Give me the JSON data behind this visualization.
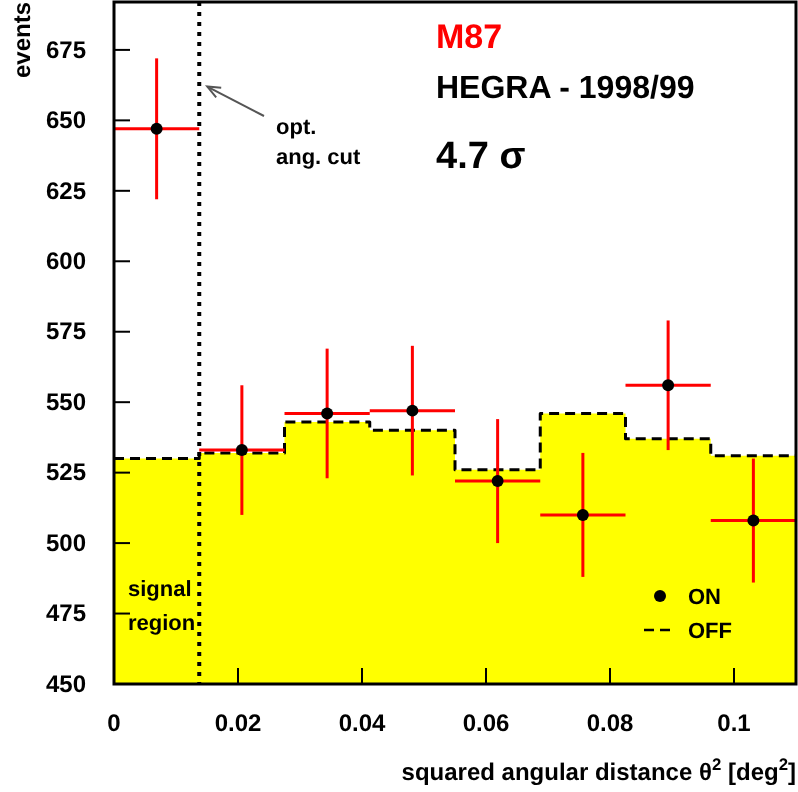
{
  "chart_data": {
    "type": "scatter",
    "title": "M87",
    "subtitle": "HEGRA - 1998/99",
    "xlabel": "squared angular distance θ$^{2}$  [deg$^{2}$]",
    "ylabel": "events",
    "annotations": [
      "4.7 σ",
      {
        "text": "opt.\nang. cut",
        "x": 0.01375,
        "y": 662
      },
      "signal\nregion"
    ],
    "x": [
      0.006875,
      0.020625,
      0.034375,
      0.048125,
      0.061875,
      0.075625,
      0.089375,
      0.103125
    ],
    "series": [
      {
        "type": "histogram",
        "color": "#ffff00",
        "bins": [
          0,
          0.01375,
          0.0275,
          0.04125,
          0.055,
          0.06875,
          0.0825,
          0.09625,
          0.11
        ],
        "values": [
          530,
          532,
          543,
          540,
          526,
          546,
          537,
          531
        ]
      },
      {
        "type": "histogram",
        "name": "OFF",
        "color": "#000000",
        "line_style": "dashed",
        "bins": [
          0,
          0.01375,
          0.0275,
          0.04125,
          0.055,
          0.06875,
          0.0825,
          0.09625,
          0.11
        ],
        "values": [
          530,
          532,
          543,
          540,
          526,
          546,
          537,
          531
        ]
      },
      {
        "name": "ON",
        "color": "#000000",
        "marker": "circle",
        "values": [
          647,
          533,
          546,
          547,
          522,
          510,
          556,
          508
        ],
        "errors": [
          25,
          23,
          23,
          23,
          22,
          22,
          23,
          22
        ],
        "xerrors": [
          0.006875,
          0.006875,
          0.006875,
          0.006875,
          0.006875,
          0.006875,
          0.006875,
          0.006875
        ]
      }
    ],
    "ref_lines": [
      {
        "axis": "x",
        "value": 0.01375,
        "line_style": "dotted"
      }
    ],
    "xlim": [
      0,
      0.11
    ],
    "ylim": [
      450,
      692
    ],
    "xticks": [
      0,
      0.02,
      0.04,
      0.06,
      0.08,
      0.1
    ],
    "yticks": [
      450,
      475,
      500,
      525,
      550,
      575,
      600,
      625,
      650,
      675
    ],
    "legend": "bottom right",
    "grid": false
  }
}
